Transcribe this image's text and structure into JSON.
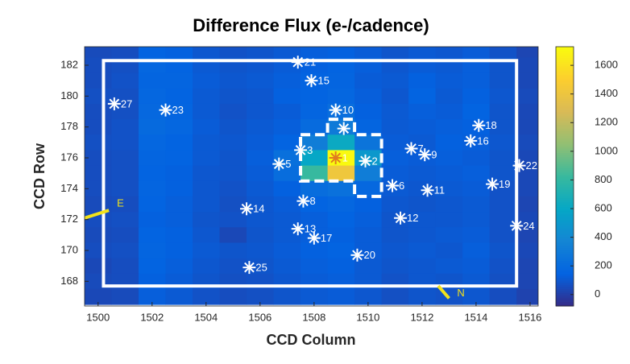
{
  "chart_data": {
    "type": "heatmap",
    "title": "Difference Flux (e-/cadence)",
    "x_label": "CCD Column",
    "y_label": "CCD Row",
    "xlim": [
      1499.5,
      1516.3
    ],
    "ylim": [
      166.4,
      183.2
    ],
    "xticks": [
      1500,
      1502,
      1504,
      1506,
      1508,
      1510,
      1512,
      1514,
      1516
    ],
    "yticks": [
      168,
      170,
      172,
      174,
      176,
      178,
      180,
      182
    ],
    "clim": [
      -80,
      1730
    ],
    "cticks": [
      0,
      200,
      400,
      600,
      800,
      1000,
      1200,
      1400,
      1600
    ],
    "colormap": [
      "#352a87",
      "#0363e1",
      "#1485d4",
      "#06a7c6",
      "#38b99e",
      "#92bf73",
      "#d9ba56",
      "#fcce2e",
      "#f9fb0e"
    ],
    "x": [
      1500,
      1501,
      1502,
      1503,
      1504,
      1505,
      1506,
      1507,
      1508,
      1509,
      1510,
      1511,
      1512,
      1513,
      1514,
      1515,
      1516
    ],
    "y": [
      183,
      182,
      181,
      180,
      179,
      178,
      177,
      176,
      175,
      174,
      173,
      172,
      171,
      170,
      169,
      168,
      167
    ],
    "values": [
      [
        50,
        60,
        150,
        140,
        100,
        80,
        90,
        110,
        130,
        140,
        120,
        90,
        110,
        100,
        120,
        80,
        30
      ],
      [
        60,
        70,
        170,
        150,
        110,
        90,
        100,
        120,
        140,
        150,
        130,
        100,
        120,
        110,
        130,
        90,
        40
      ],
      [
        60,
        80,
        160,
        160,
        120,
        100,
        110,
        130,
        150,
        160,
        120,
        110,
        140,
        120,
        130,
        90,
        40
      ],
      [
        70,
        70,
        170,
        150,
        110,
        90,
        100,
        140,
        150,
        170,
        130,
        100,
        150,
        110,
        140,
        100,
        50
      ],
      [
        60,
        70,
        180,
        160,
        110,
        80,
        100,
        120,
        160,
        220,
        140,
        110,
        130,
        120,
        150,
        90,
        40
      ],
      [
        60,
        80,
        190,
        170,
        120,
        90,
        110,
        130,
        200,
        300,
        160,
        110,
        120,
        130,
        140,
        90,
        40
      ],
      [
        70,
        80,
        170,
        150,
        110,
        100,
        120,
        150,
        320,
        620,
        260,
        120,
        110,
        140,
        130,
        100,
        50
      ],
      [
        60,
        70,
        160,
        150,
        110,
        90,
        130,
        230,
        600,
        1720,
        500,
        130,
        120,
        130,
        120,
        90,
        40
      ],
      [
        60,
        70,
        150,
        140,
        100,
        90,
        120,
        210,
        820,
        1420,
        320,
        120,
        110,
        120,
        130,
        90,
        40
      ],
      [
        60,
        70,
        160,
        140,
        100,
        80,
        110,
        140,
        210,
        240,
        180,
        110,
        100,
        110,
        120,
        80,
        40
      ],
      [
        50,
        60,
        150,
        130,
        100,
        70,
        100,
        120,
        150,
        170,
        140,
        100,
        90,
        100,
        110,
        80,
        30
      ],
      [
        60,
        70,
        140,
        130,
        90,
        80,
        100,
        110,
        130,
        150,
        130,
        90,
        100,
        100,
        110,
        80,
        40
      ],
      [
        50,
        60,
        150,
        140,
        100,
        40,
        90,
        110,
        130,
        140,
        120,
        90,
        100,
        110,
        120,
        80,
        30
      ],
      [
        60,
        70,
        160,
        140,
        110,
        90,
        100,
        120,
        140,
        150,
        120,
        100,
        110,
        100,
        130,
        90,
        40
      ],
      [
        40,
        60,
        150,
        130,
        100,
        80,
        90,
        110,
        130,
        140,
        110,
        90,
        100,
        110,
        120,
        80,
        30
      ],
      [
        50,
        60,
        140,
        120,
        90,
        70,
        80,
        100,
        120,
        130,
        110,
        80,
        100,
        90,
        110,
        70,
        30
      ],
      [
        40,
        50,
        130,
        110,
        80,
        60,
        70,
        90,
        110,
        120,
        100,
        70,
        90,
        80,
        100,
        60,
        20
      ]
    ],
    "aperture": {
      "x": [
        1500.2,
        1515.5,
        1515.5,
        1500.2
      ],
      "y": [
        182.3,
        182.3,
        167.7,
        167.7
      ],
      "color": "#ffffff"
    },
    "mask": {
      "x": [
        1507.5,
        1508.5,
        1508.5,
        1509.5,
        1509.5,
        1510.5,
        1510.5,
        1509.5,
        1509.5,
        1507.5
      ],
      "y": [
        177.5,
        177.5,
        178.5,
        178.5,
        177.5,
        177.5,
        173.5,
        173.5,
        174.5,
        174.5
      ],
      "color": "#ffffff"
    },
    "stars": [
      {
        "label": "1",
        "x": 1508.8,
        "y": 176.0,
        "color": "#e07b20"
      },
      {
        "label": "2",
        "x": 1509.9,
        "y": 175.8,
        "color": "#ffffff"
      },
      {
        "label": "3",
        "x": 1507.5,
        "y": 176.5,
        "color": "#ffffff"
      },
      {
        "label": null,
        "x": 1509.1,
        "y": 177.9,
        "color": "#ffffff"
      },
      {
        "label": "5",
        "x": 1506.7,
        "y": 175.6,
        "color": "#ffffff"
      },
      {
        "label": "6",
        "x": 1510.9,
        "y": 174.2,
        "color": "#ffffff"
      },
      {
        "label": "7",
        "x": 1511.6,
        "y": 176.6,
        "color": "#ffffff"
      },
      {
        "label": "8",
        "x": 1507.6,
        "y": 173.2,
        "color": "#ffffff"
      },
      {
        "label": "9",
        "x": 1512.1,
        "y": 176.2,
        "color": "#ffffff"
      },
      {
        "label": "10",
        "x": 1508.8,
        "y": 179.1,
        "color": "#ffffff"
      },
      {
        "label": "11",
        "x": 1512.2,
        "y": 173.9,
        "color": "#ffffff"
      },
      {
        "label": "12",
        "x": 1511.2,
        "y": 172.1,
        "color": "#ffffff"
      },
      {
        "label": "13",
        "x": 1507.4,
        "y": 171.4,
        "color": "#ffffff"
      },
      {
        "label": "14",
        "x": 1505.5,
        "y": 172.7,
        "color": "#ffffff"
      },
      {
        "label": "15",
        "x": 1507.9,
        "y": 181.0,
        "color": "#ffffff"
      },
      {
        "label": "16",
        "x": 1513.8,
        "y": 177.1,
        "color": "#ffffff"
      },
      {
        "label": "17",
        "x": 1508.0,
        "y": 170.8,
        "color": "#ffffff"
      },
      {
        "label": "18",
        "x": 1514.1,
        "y": 178.1,
        "color": "#ffffff"
      },
      {
        "label": "19",
        "x": 1514.6,
        "y": 174.3,
        "color": "#ffffff"
      },
      {
        "label": "20",
        "x": 1509.6,
        "y": 169.7,
        "color": "#ffffff"
      },
      {
        "label": "21",
        "x": 1507.4,
        "y": 182.2,
        "color": "#ffffff"
      },
      {
        "label": "22",
        "x": 1515.6,
        "y": 175.5,
        "color": "#ffffff"
      },
      {
        "label": "23",
        "x": 1502.5,
        "y": 179.1,
        "color": "#ffffff"
      },
      {
        "label": "24",
        "x": 1515.5,
        "y": 171.6,
        "color": "#ffffff"
      },
      {
        "label": "25",
        "x": 1505.6,
        "y": 168.9,
        "color": "#ffffff"
      },
      {
        "label": "27",
        "x": 1500.6,
        "y": 179.5,
        "color": "#ffffff"
      }
    ],
    "compass": [
      {
        "text": "E",
        "x": [
          1499.5,
          1500.4
        ],
        "y": [
          172.1,
          172.6
        ],
        "color": "#f2e21b"
      },
      {
        "text": "N",
        "x": [
          1512.6,
          1513.0
        ],
        "y": [
          167.7,
          166.9
        ],
        "color": "#f2e21b"
      }
    ]
  }
}
